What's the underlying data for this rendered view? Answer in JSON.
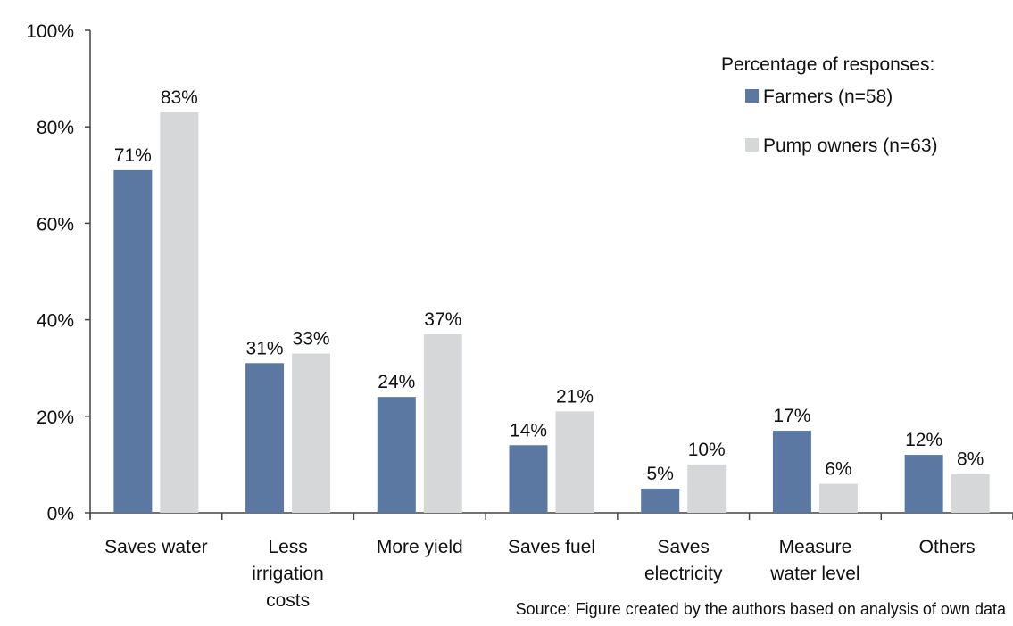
{
  "chart_data": {
    "type": "bar",
    "categories": [
      [
        "Saves water"
      ],
      [
        "Less",
        "irrigation",
        "costs"
      ],
      [
        "More yield"
      ],
      [
        "Saves fuel"
      ],
      [
        "Saves",
        "electricity"
      ],
      [
        "Measure",
        "water level"
      ],
      [
        "Others"
      ]
    ],
    "series": [
      {
        "name": "Farmers (n=58)",
        "color": "#5b78a3",
        "values": [
          71,
          31,
          24,
          14,
          5,
          17,
          12
        ]
      },
      {
        "name": "Pump owners (n=63)",
        "color": "#d6d7d9",
        "values": [
          83,
          33,
          37,
          21,
          10,
          6,
          8
        ]
      }
    ],
    "ylim": [
      0,
      100
    ],
    "yticks": [
      0,
      20,
      40,
      60,
      80,
      100
    ],
    "value_suffix": "%",
    "legend_title": "Percentage of responses:",
    "legend_position": "top-right",
    "grid": false,
    "source": "Source: Figure created by the authors based on analysis of own data"
  }
}
